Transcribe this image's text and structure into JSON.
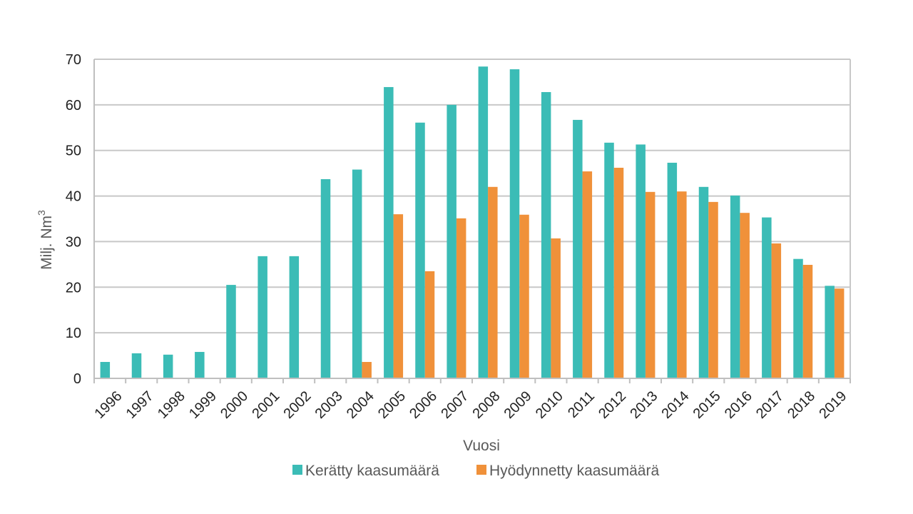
{
  "chart_data": {
    "type": "bar",
    "title": "",
    "xlabel": "Vuosi",
    "ylabel": "Milj. Nm",
    "ylabel_superscript": "3",
    "ylim": [
      0,
      70
    ],
    "yticks": [
      0,
      10,
      20,
      30,
      40,
      50,
      60,
      70
    ],
    "grid": true,
    "legend_position": "bottom",
    "categories": [
      "1996",
      "1997",
      "1998",
      "1999",
      "2000",
      "2001",
      "2002",
      "2003",
      "2004",
      "2005",
      "2006",
      "2007",
      "2008",
      "2009",
      "2010",
      "2011",
      "2012",
      "2013",
      "2014",
      "2015",
      "2016",
      "2017",
      "2018",
      "2019"
    ],
    "series": [
      {
        "name": "Kerätty kaasumäärä",
        "color": "#3BBCB6",
        "values": [
          3.6,
          5.5,
          5.2,
          5.8,
          20.5,
          26.8,
          26.8,
          43.7,
          45.8,
          63.9,
          56.1,
          60.0,
          68.4,
          67.8,
          62.8,
          56.7,
          51.7,
          51.3,
          47.3,
          42.0,
          40.1,
          35.3,
          26.2,
          20.3
        ]
      },
      {
        "name": "Hyödynnetty kaasumäärä",
        "color": "#F0913A",
        "values": [
          null,
          null,
          null,
          null,
          null,
          null,
          null,
          null,
          3.6,
          36.0,
          23.5,
          35.1,
          42.0,
          35.9,
          30.7,
          45.4,
          46.2,
          40.9,
          41.0,
          38.7,
          36.3,
          29.6,
          24.9,
          19.7
        ]
      }
    ]
  }
}
